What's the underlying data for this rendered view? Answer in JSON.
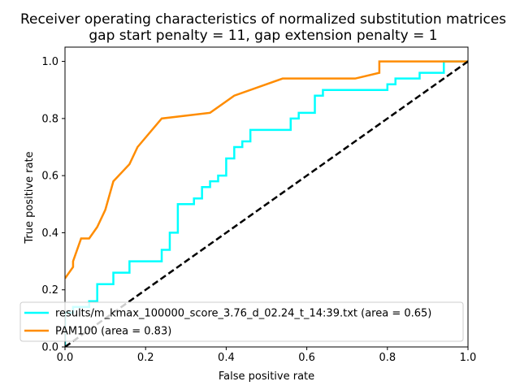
{
  "chart_data": {
    "type": "line",
    "title": "Receiver operating characteristics of normalized substitution matrices",
    "subtitle": "gap start penalty = 11, gap extension penalty = 1",
    "xlabel": "False positive rate",
    "ylabel": "True positive rate",
    "xlim": [
      0.0,
      1.0
    ],
    "ylim": [
      0.0,
      1.05
    ],
    "xticks": [
      "0.0",
      "0.2",
      "0.4",
      "0.6",
      "0.8",
      "1.0"
    ],
    "yticks": [
      "0.0",
      "0.2",
      "0.4",
      "0.6",
      "0.8",
      "1.0"
    ],
    "grid": false,
    "legend_position": "lower-left",
    "series": [
      {
        "name": "results/m_kmax_100000_score_3.76_d_02.24_t_14:39.txt (area = 0.65)",
        "color": "#00ffff",
        "x": [
          0.0,
          0.0,
          0.02,
          0.02,
          0.06,
          0.06,
          0.08,
          0.08,
          0.12,
          0.12,
          0.16,
          0.16,
          0.24,
          0.24,
          0.26,
          0.26,
          0.28,
          0.28,
          0.32,
          0.32,
          0.34,
          0.34,
          0.36,
          0.36,
          0.38,
          0.38,
          0.4,
          0.4,
          0.42,
          0.42,
          0.44,
          0.44,
          0.46,
          0.46,
          0.56,
          0.56,
          0.58,
          0.58,
          0.62,
          0.62,
          0.64,
          0.64,
          0.8,
          0.8,
          0.82,
          0.82,
          0.88,
          0.88,
          0.94,
          0.94,
          1.0
        ],
        "y": [
          0.0,
          0.12,
          0.12,
          0.14,
          0.14,
          0.16,
          0.16,
          0.22,
          0.22,
          0.26,
          0.26,
          0.3,
          0.3,
          0.34,
          0.34,
          0.4,
          0.4,
          0.5,
          0.5,
          0.52,
          0.52,
          0.56,
          0.56,
          0.58,
          0.58,
          0.6,
          0.6,
          0.66,
          0.66,
          0.7,
          0.7,
          0.72,
          0.72,
          0.76,
          0.76,
          0.8,
          0.8,
          0.82,
          0.82,
          0.88,
          0.88,
          0.9,
          0.9,
          0.92,
          0.92,
          0.94,
          0.94,
          0.96,
          0.96,
          1.0,
          1.0
        ]
      },
      {
        "name": "PAM100 (area = 0.83)",
        "color": "#ff8c00",
        "x": [
          0.0,
          0.02,
          0.02,
          0.04,
          0.06,
          0.08,
          0.1,
          0.12,
          0.16,
          0.18,
          0.24,
          0.36,
          0.42,
          0.54,
          0.72,
          0.78,
          0.78,
          1.0
        ],
        "y": [
          0.24,
          0.28,
          0.3,
          0.38,
          0.38,
          0.42,
          0.48,
          0.58,
          0.64,
          0.7,
          0.8,
          0.82,
          0.88,
          0.94,
          0.94,
          0.96,
          1.0,
          1.0
        ]
      },
      {
        "name": "",
        "color": "#000000",
        "dashed": true,
        "x": [
          0.0,
          1.0
        ],
        "y": [
          0.0,
          1.0
        ]
      }
    ]
  }
}
